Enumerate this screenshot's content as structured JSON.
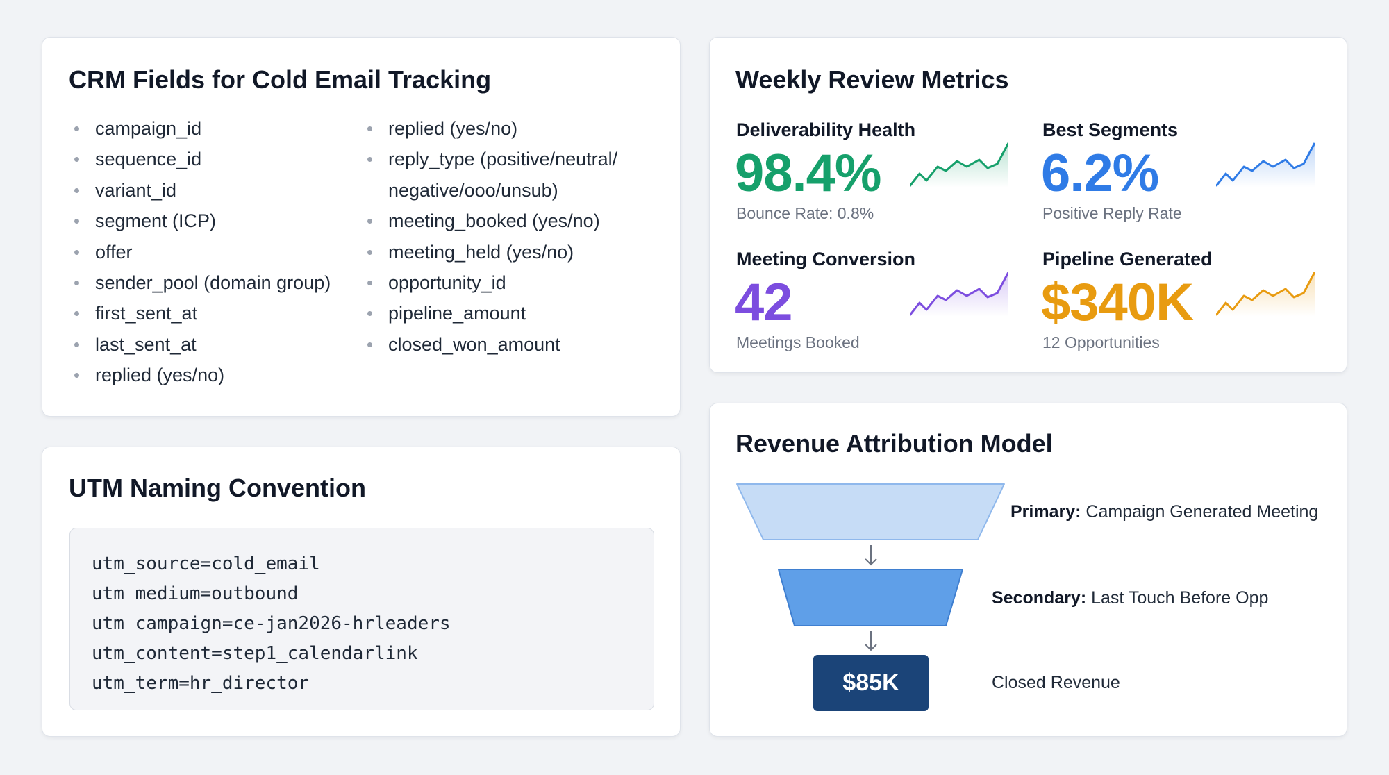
{
  "crm": {
    "title": "CRM Fields for Cold Email Tracking",
    "col1": [
      "campaign_id",
      "sequence_id",
      "variant_id",
      "segment (ICP)",
      "offer",
      "sender_pool (domain group)",
      "first_sent_at",
      "last_sent_at",
      "replied (yes/no)"
    ],
    "col2": [
      "replied (yes/no)",
      "reply_type (positive/neutral/ negative/ooo/unsub)",
      "meeting_booked (yes/no)",
      "meeting_held (yes/no)",
      "opportunity_id",
      "pipeline_amount",
      "closed_won_amount"
    ]
  },
  "utm": {
    "title": "UTM Naming Convention",
    "lines": [
      "utm_source=cold_email",
      "utm_medium=outbound",
      "utm_campaign=ce-jan2026-hrleaders",
      "utm_content=step1_calendarlink",
      "utm_term=hr_director"
    ]
  },
  "metrics": {
    "title": "Weekly Review Metrics",
    "items": [
      {
        "label": "Deliverability Health",
        "value": "98.4%",
        "sub": "Bounce Rate: 0.8%",
        "color": "#16a06b"
      },
      {
        "label": "Best Segments",
        "value": "6.2%",
        "sub": "Positive Reply Rate",
        "color": "#2f7be6"
      },
      {
        "label": "Meeting Conversion",
        "value": "42",
        "sub": "Meetings Booked",
        "color": "#7c4ddf"
      },
      {
        "label": "Pipeline Generated",
        "value": "$340K",
        "sub": "12 Opportunities",
        "color": "#e89b10"
      }
    ]
  },
  "revenue": {
    "title": "Revenue Attribution Model",
    "primary_label": "Primary:",
    "primary_text": "Campaign Generated Meeting",
    "secondary_label": "Secondary:",
    "secondary_text": "Last Touch Before Opp",
    "closed_value": "$85K",
    "closed_text": "Closed Revenue"
  }
}
